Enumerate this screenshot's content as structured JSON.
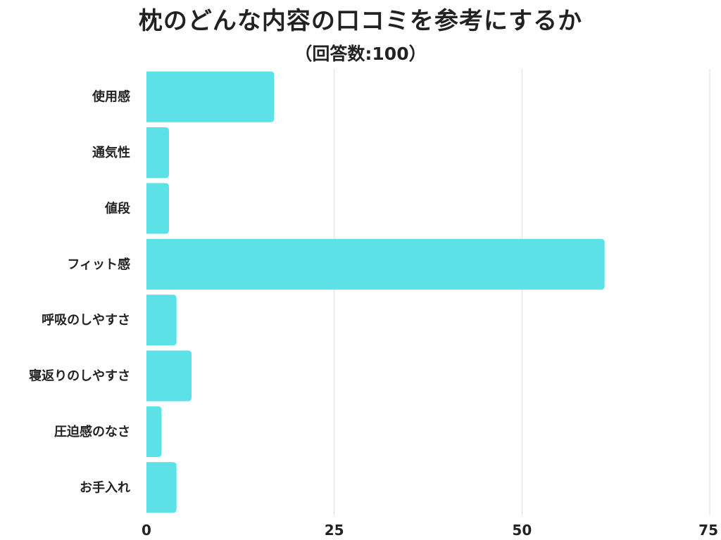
{
  "chart_data": {
    "type": "bar",
    "orientation": "horizontal",
    "title": "枕のどんな内容の口コミを参考にするか",
    "subtitle": "（回答数:100）",
    "categories": [
      "使用感",
      "通気性",
      "値段",
      "フィット感",
      "呼吸のしやすさ",
      "寝返りのしやすさ",
      "圧迫感のなさ",
      "お手入れ"
    ],
    "values": [
      17,
      3,
      3,
      61,
      4,
      6,
      2,
      4
    ],
    "xlim": [
      0,
      75
    ],
    "xticks": [
      "0",
      "25",
      "50",
      "75"
    ],
    "xlabel": "",
    "ylabel": "",
    "grid": true,
    "legend": "none",
    "bar_color": "#5ce1e6",
    "grid_color": "#dddddd"
  }
}
